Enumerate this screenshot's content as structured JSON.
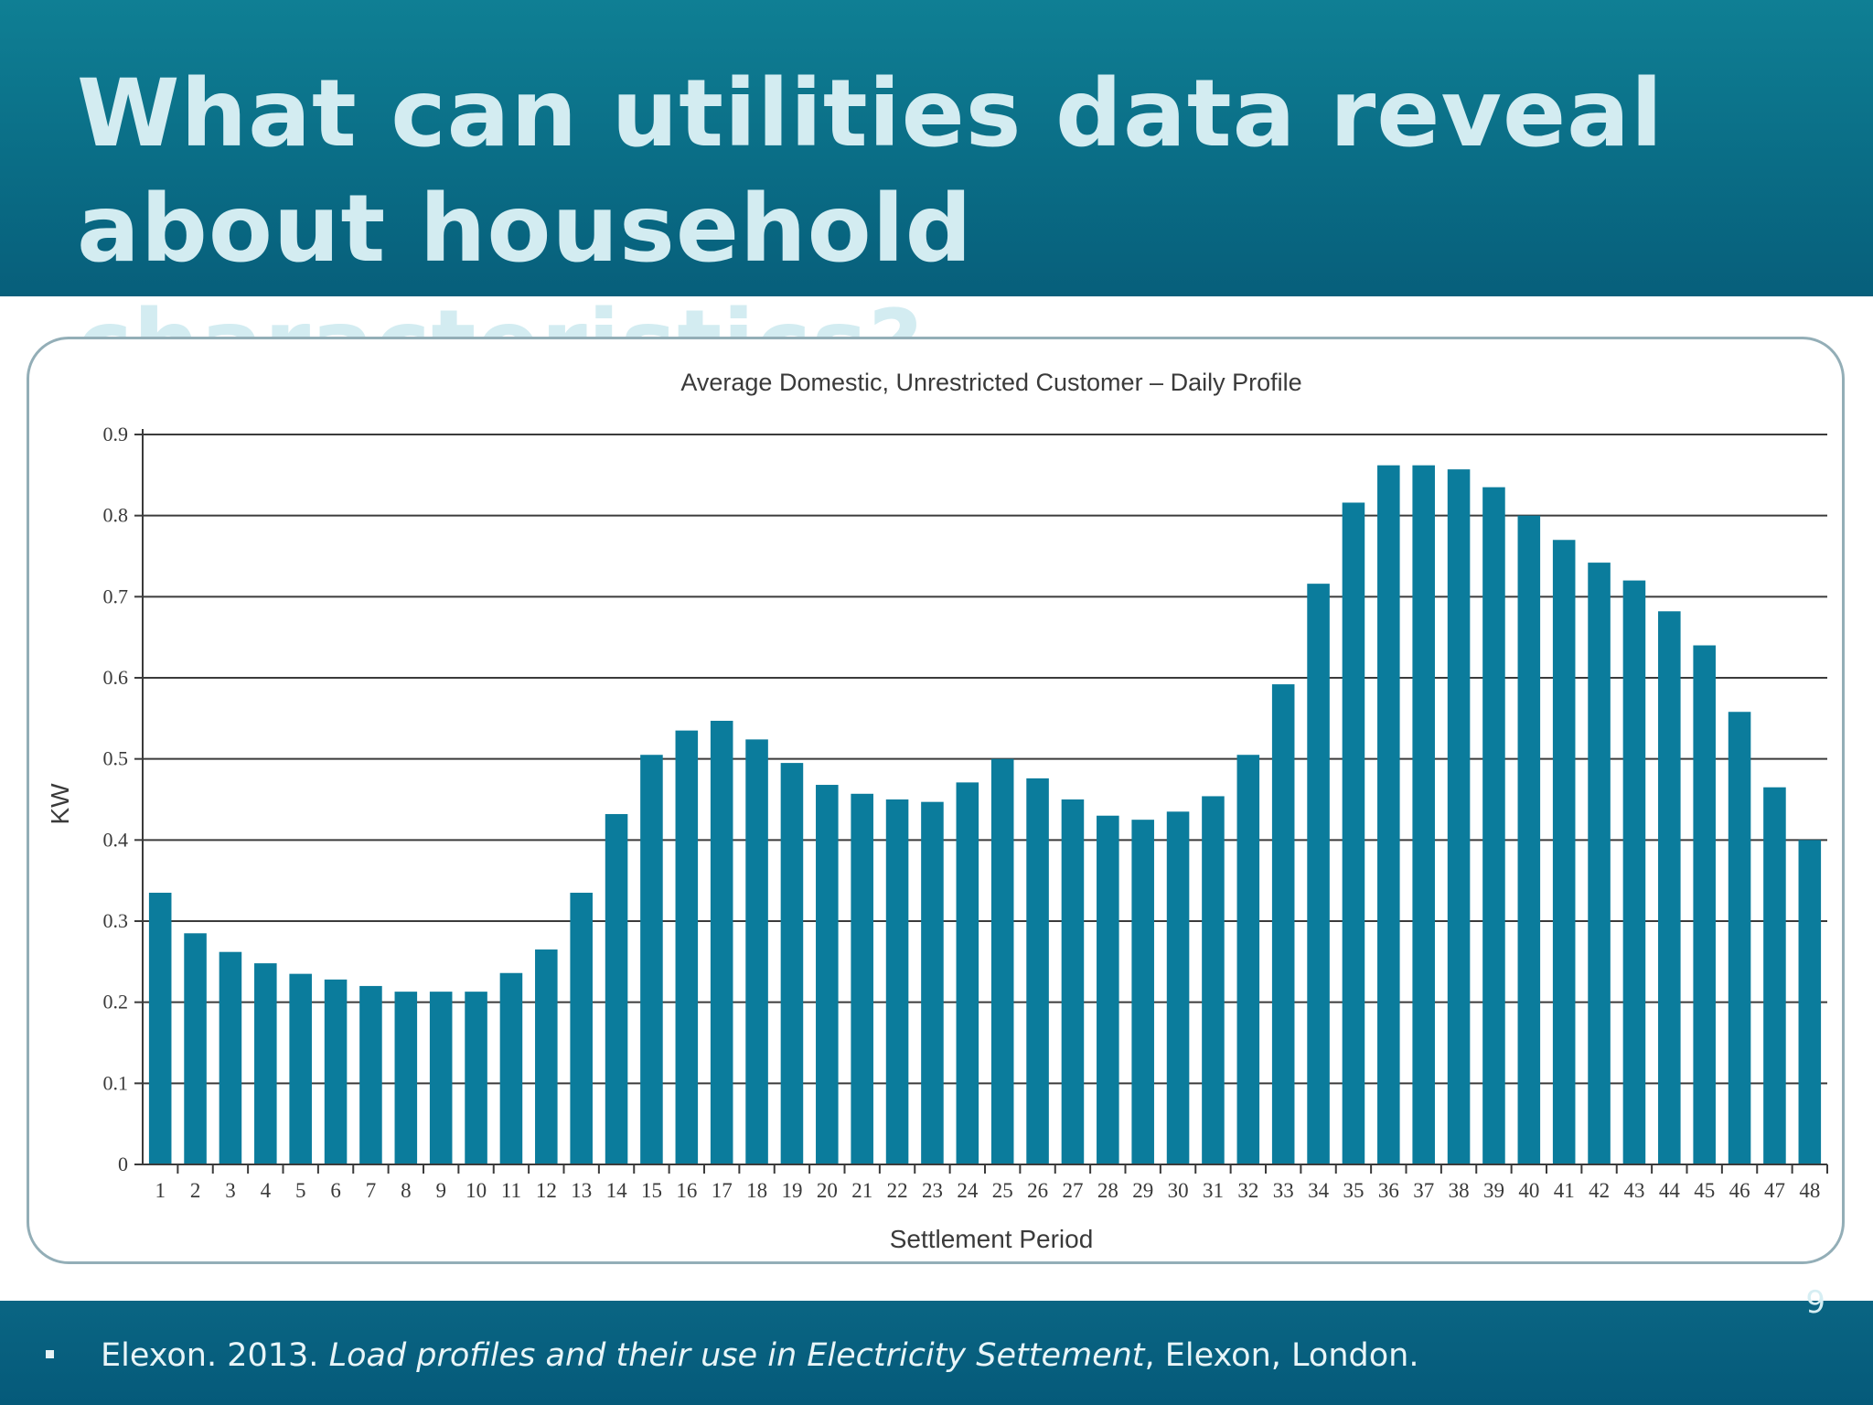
{
  "slide": {
    "title": "What can utilities data reveal about household characteristics?",
    "page_number": "9"
  },
  "citation": {
    "author_year": "Elexon. 2013. ",
    "work_title": "Load profiles and their use in Electricity Settement",
    "publisher": ", Elexon, London."
  },
  "colors": {
    "header_bg": "#0a6d86",
    "title_text": "#d3ecf1",
    "bar": "#0b7c9c",
    "gridline": "#3b3b3b"
  },
  "icons": {
    "bullet": "square-bullet-icon"
  },
  "chart_data": {
    "type": "bar",
    "title": "Average Domestic, Unrestricted Customer – Daily Profile",
    "xlabel": "Settlement Period",
    "ylabel": "KW",
    "ylim": [
      0,
      0.9
    ],
    "yticks": [
      "0",
      "0.1",
      "0.2",
      "0.3",
      "0.4",
      "0.5",
      "0.6",
      "0.7",
      "0.8",
      "0.9"
    ],
    "grid": true,
    "categories": [
      "1",
      "2",
      "3",
      "4",
      "5",
      "6",
      "7",
      "8",
      "9",
      "10",
      "11",
      "12",
      "13",
      "14",
      "15",
      "16",
      "17",
      "18",
      "19",
      "20",
      "21",
      "22",
      "23",
      "24",
      "25",
      "26",
      "27",
      "28",
      "29",
      "30",
      "31",
      "32",
      "33",
      "34",
      "35",
      "36",
      "37",
      "38",
      "39",
      "40",
      "41",
      "42",
      "43",
      "44",
      "45",
      "46",
      "47",
      "48"
    ],
    "values": [
      0.335,
      0.285,
      0.262,
      0.248,
      0.235,
      0.228,
      0.22,
      0.213,
      0.213,
      0.213,
      0.236,
      0.265,
      0.335,
      0.432,
      0.505,
      0.535,
      0.547,
      0.524,
      0.495,
      0.468,
      0.457,
      0.45,
      0.447,
      0.471,
      0.5,
      0.476,
      0.45,
      0.43,
      0.425,
      0.435,
      0.454,
      0.505,
      0.592,
      0.716,
      0.816,
      0.862,
      0.862,
      0.857,
      0.835,
      0.8,
      0.77,
      0.742,
      0.72,
      0.682,
      0.64,
      0.558,
      0.465,
      0.4
    ]
  }
}
